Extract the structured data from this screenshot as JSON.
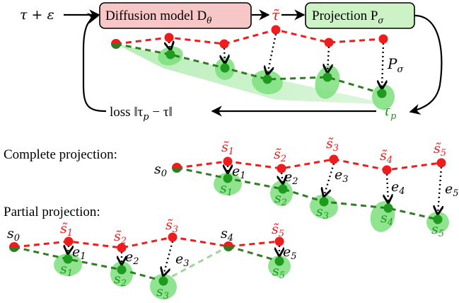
{
  "top": {
    "input_text": "τ + ε",
    "diffusion_box": {
      "label": "Diffusion model D",
      "sub": "θ",
      "color": "#f7c6c6"
    },
    "tilde_tau_text": "τ̃",
    "projection_box": {
      "label": "Projection P",
      "sub": "σ",
      "color": "#ccf2c6"
    },
    "p_sigma_text": "P",
    "p_sigma_sub": "σ",
    "loss_text": "loss ‖τ",
    "loss_sub": "p",
    "loss_tail": " − τ‖",
    "tau_p_text": "τ",
    "tau_p_sub": "p"
  },
  "complete": {
    "heading": "Complete projection:",
    "start_label": "s",
    "start_sub": "0",
    "noisy_labels": [
      "s̃1",
      "s̃2",
      "s̃3",
      "s̃4",
      "s̃5"
    ],
    "projected_labels": [
      "s1",
      "s2",
      "s3",
      "s4",
      "s5"
    ],
    "error_labels": [
      "e1",
      "e2",
      "e3",
      "e4",
      "e5"
    ]
  },
  "partial": {
    "heading": "Partial projection:",
    "start_label": "s",
    "start_sub": "0",
    "mid_label": "s",
    "mid_sub": "4",
    "noisy_labels": [
      "s̃1",
      "s̃2",
      "s̃3",
      "s̃5"
    ],
    "projected_labels": [
      "s1",
      "s2",
      "s3",
      "s5"
    ],
    "error_labels": [
      "e1",
      "e2",
      "e3",
      "e5"
    ]
  },
  "colors": {
    "red": "#ee1c1c",
    "green": "#1e9a1e",
    "dark_green": "#2e7d22",
    "ellipse": "#7ddf7d",
    "black": "#000000"
  }
}
